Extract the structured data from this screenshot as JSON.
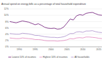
{
  "chart_data": {
    "type": "line",
    "title": "Annual spend on energy bills as a percentage of total household expenditure",
    "x": [
      1987,
      1988,
      1989,
      1990,
      1991,
      1992,
      1993,
      1994,
      1995,
      1996,
      1997,
      1998,
      1999,
      2000,
      2001,
      2002,
      2003,
      2004,
      2005,
      2006,
      2007,
      2008,
      2009,
      2010,
      2011,
      2012,
      2013,
      2014,
      2015,
      2016
    ],
    "xlim": [
      1987,
      2016
    ],
    "xticks": [
      1990,
      1995,
      2000,
      2005,
      2010,
      2015
    ],
    "ylim": [
      0,
      12
    ],
    "yticks": [
      {
        "value": 0,
        "label": "0%"
      },
      {
        "value": 2,
        "label": "2%"
      },
      {
        "value": 4,
        "label": "4%"
      },
      {
        "value": 6,
        "label": "6%"
      },
      {
        "value": 8,
        "label": "8%"
      },
      {
        "value": 10,
        "label": "10%"
      },
      {
        "value": 12,
        "label": "12%"
      }
    ],
    "grid": true,
    "legend": "bottom",
    "series": [
      {
        "name": "Lowest 10% of incomes",
        "color": "#7b2c83",
        "values": [
          8.0,
          7.8,
          7.6,
          7.9,
          8.2,
          8.0,
          7.8,
          7.4,
          7.0,
          7.3,
          6.8,
          6.2,
          5.9,
          5.8,
          5.9,
          5.6,
          5.7,
          6.3,
          7.5,
          8.8,
          8.5,
          9.8,
          10.2,
          10.0,
          10.6,
          10.8,
          10.9,
          10.5,
          10.1,
          10.0
        ]
      },
      {
        "name": "Highest 10% of incomes",
        "color": "#e593c4",
        "values": [
          2.8,
          2.7,
          2.6,
          2.6,
          2.8,
          2.7,
          2.6,
          2.5,
          2.3,
          2.3,
          2.2,
          2.0,
          1.9,
          1.9,
          1.9,
          1.8,
          1.9,
          2.0,
          2.2,
          2.6,
          2.5,
          2.8,
          2.9,
          2.8,
          3.1,
          3.1,
          3.0,
          2.9,
          2.7,
          2.6
        ]
      },
      {
        "name": "All households",
        "color": "#b39bd0",
        "values": [
          4.2,
          4.1,
          4.0,
          4.0,
          4.3,
          4.2,
          4.1,
          3.9,
          3.6,
          3.6,
          3.4,
          3.2,
          3.1,
          3.0,
          3.0,
          2.9,
          3.0,
          3.2,
          3.6,
          4.2,
          4.2,
          4.7,
          4.8,
          4.6,
          5.0,
          5.0,
          5.1,
          4.8,
          4.6,
          4.5
        ]
      }
    ]
  }
}
